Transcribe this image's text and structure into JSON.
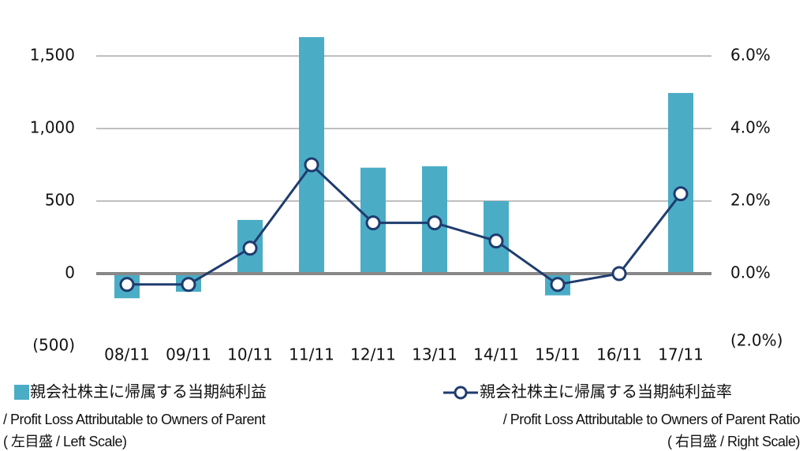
{
  "chart_data": {
    "type": "bar_line",
    "categories": [
      "08/11",
      "09/11",
      "10/11",
      "11/11",
      "12/11",
      "13/11",
      "14/11",
      "15/11",
      "16/11",
      "17/11"
    ],
    "series": [
      {
        "name": "親会社株主に帰属する当期純利益",
        "name_en": "/ Profit Loss Attributable to Owners of Parent",
        "scale_note": "( 左目盛 / Left Scale)",
        "type": "bar",
        "color": "#4bacc6",
        "values": [
          -170,
          -125,
          370,
          1630,
          730,
          740,
          500,
          -150,
          0,
          1245
        ]
      },
      {
        "name": "親会社株主に帰属する当期純利益率",
        "name_en": "/ Profit Loss Attributable to Owners of Parent Ratio",
        "scale_note": "( 右目盛 / Right Scale)",
        "type": "line",
        "axis": "y2",
        "color": "#1f3c6e",
        "values": [
          -0.3,
          -0.3,
          0.7,
          3.0,
          1.4,
          1.4,
          0.9,
          -0.3,
          0.0,
          2.2
        ]
      }
    ],
    "ylim": [
      -500,
      1500
    ],
    "yticks": [
      {
        "value": -500,
        "label": "(500)"
      },
      0,
      500,
      {
        "value": 1000,
        "label": "1,000"
      },
      {
        "value": 1500,
        "label": "1,500"
      }
    ],
    "y2lim": [
      -2,
      6
    ],
    "y2ticks": [
      {
        "value": -2,
        "label": "(2.0%)"
      },
      {
        "value": 0,
        "label": "0.0%"
      },
      {
        "value": 2,
        "label": "2.0%"
      },
      {
        "value": 4,
        "label": "4.0%"
      },
      {
        "value": 6,
        "label": "6.0%"
      }
    ],
    "grid": true
  }
}
